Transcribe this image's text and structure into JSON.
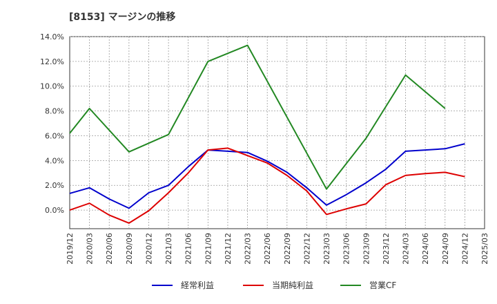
{
  "title": "[8153]  マージンの推移",
  "chart_data": {
    "type": "line",
    "x": [
      "2019/12",
      "2020/03",
      "2020/06",
      "2020/09",
      "2020/12",
      "2021/03",
      "2021/06",
      "2021/09",
      "2021/12",
      "2022/03",
      "2022/06",
      "2022/09",
      "2022/12",
      "2023/03",
      "2023/06",
      "2023/09",
      "2023/12",
      "2024/03",
      "2024/06",
      "2024/09",
      "2024/12",
      "2025/03"
    ],
    "y_ticks": [
      "0.0%",
      "2.0%",
      "4.0%",
      "6.0%",
      "8.0%",
      "10.0%",
      "12.0%",
      "14.0%"
    ],
    "ylim": [
      -1.5,
      14.0
    ],
    "grid": true,
    "legend_position": "bottom",
    "series": [
      {
        "name": "経常利益",
        "color": "#0000cc",
        "values": [
          1.35,
          1.8,
          0.9,
          0.15,
          1.4,
          2.0,
          3.5,
          4.85,
          4.75,
          4.65,
          3.95,
          3.05,
          1.8,
          0.4,
          1.25,
          2.2,
          3.3,
          4.75,
          4.85,
          4.95,
          5.35,
          null
        ]
      },
      {
        "name": "当期純利益",
        "color": "#dd0000",
        "values": [
          0.0,
          0.55,
          -0.4,
          -1.05,
          -0.05,
          1.4,
          3.0,
          4.85,
          5.0,
          4.4,
          3.8,
          2.8,
          1.55,
          -0.35,
          0.1,
          0.5,
          2.05,
          2.8,
          2.95,
          3.05,
          2.7,
          null
        ]
      },
      {
        "name": "営業CF",
        "color": "#228822",
        "values": [
          6.2,
          8.2,
          null,
          4.7,
          null,
          6.1,
          null,
          12.0,
          null,
          13.3,
          null,
          null,
          null,
          1.7,
          null,
          5.8,
          null,
          10.9,
          null,
          8.2,
          null,
          null
        ]
      }
    ]
  }
}
